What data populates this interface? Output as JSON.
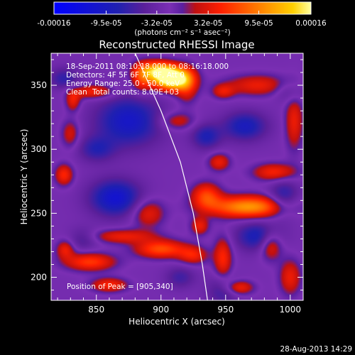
{
  "chart_data": {
    "type": "heatmap",
    "title": "Reconstructed RHESSI Image",
    "xlabel": "Heliocentric X (arcsec)",
    "ylabel": "Heliocentric Y (arcsec)",
    "xlim": [
      815,
      1010
    ],
    "ylim": [
      182,
      375
    ],
    "xticks": [
      850,
      900,
      950,
      1000
    ],
    "yticks": [
      200,
      250,
      300,
      350
    ],
    "colorbar": {
      "min": -0.00016,
      "max": 0.00016,
      "ticks": [
        {
          "value": -0.00016,
          "label": "-0.00016"
        },
        {
          "value": -9.5e-05,
          "label": "-9.5e-05"
        },
        {
          "value": -3.2e-05,
          "label": "-3.2e-05"
        },
        {
          "value": 3.2e-05,
          "label": "3.2e-05"
        },
        {
          "value": 9.5e-05,
          "label": "9.5e-05"
        },
        {
          "value": 0.00016,
          "label": "0.00016"
        }
      ],
      "unit_label": "(photons cm⁻² s⁻¹ asec⁻²)"
    },
    "annotations": {
      "line1": "18-Sep-2011 08:10:18.000 to 08:16:18.000",
      "line2": "Detectors: 4F 5F 6F 7F 8F, Att 0",
      "line3": "Energy Range: 25.0 - 50.0 keV",
      "line4_method": "Clean",
      "line4_counts": "Total counts: 8.09E+03",
      "peak": "Position of Peak = [905,340]"
    },
    "peak_position": [
      905,
      340
    ],
    "limb": [
      [
        880,
        375
      ],
      [
        900,
        330
      ],
      [
        915,
        290
      ],
      [
        925,
        250
      ],
      [
        932,
        210
      ],
      [
        936,
        182
      ]
    ],
    "sources": [
      {
        "x": 908,
        "y": 355,
        "sx": 10,
        "sy": 6,
        "amp": 0.00022
      },
      {
        "x": 897,
        "y": 362,
        "sx": 10,
        "sy": 5,
        "amp": 0.00012
      },
      {
        "x": 885,
        "y": 355,
        "sx": 6,
        "sy": 8,
        "amp": 7e-05
      },
      {
        "x": 920,
        "y": 350,
        "sx": 6,
        "sy": 10,
        "amp": 6e-05
      },
      {
        "x": 848,
        "y": 345,
        "sx": 12,
        "sy": 4,
        "amp": 7e-05
      },
      {
        "x": 832,
        "y": 338,
        "sx": 4,
        "sy": 6,
        "amp": 6e-05
      },
      {
        "x": 912,
        "y": 322,
        "sx": 10,
        "sy": 5,
        "amp": 5e-05
      },
      {
        "x": 975,
        "y": 350,
        "sx": 18,
        "sy": 6,
        "amp": 6e-05
      },
      {
        "x": 948,
        "y": 345,
        "sx": 6,
        "sy": 4,
        "amp": 5e-05
      },
      {
        "x": 1003,
        "y": 322,
        "sx": 5,
        "sy": 16,
        "amp": 6e-05
      },
      {
        "x": 945,
        "y": 290,
        "sx": 6,
        "sy": 5,
        "amp": 6e-05
      },
      {
        "x": 988,
        "y": 282,
        "sx": 12,
        "sy": 5,
        "amp": 7e-05
      },
      {
        "x": 968,
        "y": 255,
        "sx": 22,
        "sy": 6,
        "amp": 0.00013
      },
      {
        "x": 935,
        "y": 264,
        "sx": 8,
        "sy": 7,
        "amp": 8e-05
      },
      {
        "x": 825,
        "y": 280,
        "sx": 5,
        "sy": 6,
        "amp": 7e-05
      },
      {
        "x": 890,
        "y": 250,
        "sx": 9,
        "sy": 8,
        "amp": 6e-05
      },
      {
        "x": 870,
        "y": 232,
        "sx": 18,
        "sy": 4,
        "amp": 6e-05
      },
      {
        "x": 900,
        "y": 222,
        "sx": 14,
        "sy": 5,
        "amp": 9e-05
      },
      {
        "x": 925,
        "y": 217,
        "sx": 8,
        "sy": 5,
        "amp": 6e-05
      },
      {
        "x": 845,
        "y": 212,
        "sx": 14,
        "sy": 5,
        "amp": 8e-05
      },
      {
        "x": 826,
        "y": 222,
        "sx": 5,
        "sy": 5,
        "amp": 6e-05
      },
      {
        "x": 948,
        "y": 215,
        "sx": 5,
        "sy": 12,
        "amp": 7e-05
      },
      {
        "x": 985,
        "y": 225,
        "sx": 6,
        "sy": 8,
        "amp": 7e-05
      },
      {
        "x": 860,
        "y": 194,
        "sx": 10,
        "sy": 4,
        "amp": 7e-05
      },
      {
        "x": 960,
        "y": 192,
        "sx": 8,
        "sy": 4,
        "amp": 7e-05
      },
      {
        "x": 1000,
        "y": 200,
        "sx": 6,
        "sy": 10,
        "amp": 6e-05
      },
      {
        "x": 830,
        "y": 312,
        "sx": 5,
        "sy": 8,
        "amp": 5e-05
      },
      {
        "x": 930,
        "y": 240,
        "sx": 5,
        "sy": 5,
        "amp": 6e-05
      },
      {
        "x": 825,
        "y": 355,
        "sx": 8,
        "sy": 6,
        "amp": -5e-05
      },
      {
        "x": 875,
        "y": 322,
        "sx": 18,
        "sy": 14,
        "amp": -8e-05
      },
      {
        "x": 850,
        "y": 300,
        "sx": 10,
        "sy": 7,
        "amp": -5e-05
      },
      {
        "x": 865,
        "y": 262,
        "sx": 14,
        "sy": 10,
        "amp": -9e-05
      },
      {
        "x": 965,
        "y": 318,
        "sx": 12,
        "sy": 8,
        "amp": -7e-05
      },
      {
        "x": 935,
        "y": 310,
        "sx": 8,
        "sy": 7,
        "amp": -6e-05
      },
      {
        "x": 995,
        "y": 262,
        "sx": 8,
        "sy": 10,
        "amp": -6e-05
      },
      {
        "x": 975,
        "y": 232,
        "sx": 12,
        "sy": 8,
        "amp": -7e-05
      },
      {
        "x": 840,
        "y": 230,
        "sx": 8,
        "sy": 6,
        "amp": -4e-05
      },
      {
        "x": 948,
        "y": 190,
        "sx": 8,
        "sy": 8,
        "amp": -5e-05
      },
      {
        "x": 1000,
        "y": 345,
        "sx": 8,
        "sy": 6,
        "amp": -4e-05
      },
      {
        "x": 915,
        "y": 200,
        "sx": 8,
        "sy": 6,
        "amp": -4e-05
      }
    ]
  },
  "footer": {
    "timestamp": "28-Aug-2013 14:29"
  },
  "colors": {
    "background": "#000000",
    "foreground": "#ffffff",
    "colormap": [
      "#0000ff",
      "#2020b0",
      "#5a1f9a",
      "#7b2fb4",
      "#c01010",
      "#ff2000",
      "#ff8000",
      "#ffd000",
      "#ffffa0"
    ]
  }
}
